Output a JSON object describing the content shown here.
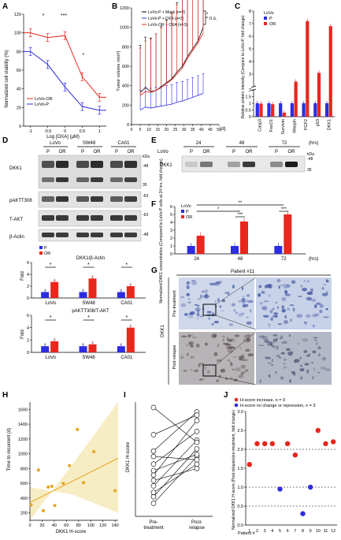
{
  "figure": {
    "panel_letters": [
      "A",
      "B",
      "C",
      "D",
      "E",
      "F",
      "G",
      "H",
      "I",
      "J"
    ],
    "colors": {
      "red": "#e8271d",
      "blue": "#2c2ce0",
      "band": "#1c1c1c",
      "ihc_bg": "#cdd7e8",
      "ihc_cell": "#3a4fa0",
      "yellow": "#e5a51f",
      "yellow_fill": "#f6edc4"
    }
  },
  "panelA": {
    "ylabel": "Normalized cell viability (%)",
    "xlabel": "Log [OXA] (μM)",
    "xticks": [
      "-1",
      "-0.5",
      "0",
      "0.5",
      "1"
    ],
    "yticks": [
      "0",
      "20",
      "40",
      "60",
      "80",
      "100",
      "120"
    ],
    "legend": [
      "LoVo-OR",
      "LoVo-P"
    ],
    "sig": [
      "*",
      "***",
      "*"
    ],
    "chart_data": {
      "type": "line",
      "series": [
        {
          "name": "LoVo-OR",
          "x": [
            -1,
            -0.5,
            0,
            0.5,
            1
          ],
          "y": [
            100,
            95,
            97,
            53,
            31
          ]
        },
        {
          "name": "LoVo-P",
          "x": [
            -1,
            -0.5,
            0,
            0.5,
            1
          ],
          "y": [
            80,
            66,
            42,
            21,
            17
          ]
        }
      ],
      "xlim": [
        -1.2,
        1.2
      ],
      "ylim": [
        0,
        120
      ]
    }
  },
  "panelB": {
    "ylabel": "Tumor volume (mm³)",
    "xlabel": "(d)",
    "xticks": [
      "0",
      "5",
      "10",
      "15",
      "20",
      "25",
      "30",
      "35",
      "40",
      "45",
      "50"
    ],
    "yticks": [
      "0",
      "200",
      "400",
      "600",
      "800",
      "1000",
      "1200"
    ],
    "legend": [
      "LoVo-P + Mock (n=3)",
      "LoVo-P + OXA (n=3)",
      "LoVo-OR + OXA (n=3)"
    ],
    "sig": [
      "*",
      "n.s."
    ],
    "chart_data": {
      "type": "line",
      "series": [
        {
          "name": "LoVo-P + Mock (n=3)",
          "x": [
            5,
            8,
            11,
            14,
            17,
            20,
            23,
            26,
            29,
            32,
            35,
            38,
            41
          ],
          "y": [
            330,
            380,
            340,
            350,
            390,
            430,
            470,
            540,
            600,
            700,
            780,
            860,
            1000
          ]
        },
        {
          "name": "LoVo-P + OXA (n=3)",
          "x": [
            5,
            8,
            11,
            14,
            17,
            20,
            23,
            26,
            29,
            32,
            35,
            38,
            41
          ],
          "y": [
            150,
            180,
            170,
            180,
            190,
            200,
            210,
            230,
            240,
            260,
            280,
            300,
            320
          ]
        },
        {
          "name": "LoVo-OR + OXA (n=3)",
          "x": [
            5,
            8,
            11,
            14,
            17,
            20,
            23,
            26,
            29,
            32,
            35,
            38,
            41
          ],
          "y": [
            300,
            340,
            330,
            350,
            380,
            420,
            460,
            520,
            580,
            680,
            760,
            840,
            940
          ]
        }
      ]
    }
  },
  "panelC": {
    "ylabel": "Relative protein intensity (Compare to LoVo-P, fold change)",
    "legend_title": "LoVo",
    "legend": [
      "P",
      "OR"
    ],
    "yticks": [
      "0",
      "0.5",
      "1",
      "1.5",
      "2",
      "3",
      "4",
      "5",
      "6",
      "7",
      "8"
    ],
    "chart_data": {
      "type": "bar",
      "categories": [
        "Casp3",
        "FoxO1",
        "Survivin",
        "Maspin",
        "FGF2",
        "p53",
        "DKK1"
      ],
      "series": [
        {
          "name": "P",
          "values": [
            1,
            1,
            1,
            1,
            1,
            1,
            1
          ]
        },
        {
          "name": "OR",
          "values": [
            0.97,
            0.93,
            0.3,
            2.4,
            7.2,
            3.1,
            6.8
          ]
        }
      ]
    }
  },
  "panelD": {
    "groups": [
      "LoVo",
      "SW48",
      "CA01"
    ],
    "lanes": [
      "P",
      "OR",
      "P",
      "OR",
      "P",
      "OR"
    ],
    "rows": [
      "DKK1",
      "pAKTT308",
      "T-AKT",
      "β-Actin"
    ],
    "kda": [
      "kDa",
      "-48",
      "35",
      "-63",
      "-63",
      "-48"
    ],
    "bar1": {
      "title": "DKK1/β-Actin",
      "ylabel": "Fold",
      "legend": [
        "P",
        "OR"
      ],
      "yticks": [
        "0",
        "2",
        "4",
        "6"
      ],
      "chart_data": {
        "type": "bar",
        "categories": [
          "LoVo",
          "SW48",
          "CA01"
        ],
        "series": [
          {
            "name": "P",
            "values": [
              1,
              1,
              1
            ]
          },
          {
            "name": "OR",
            "values": [
              2.7,
              3.3,
              2.0
            ]
          }
        ],
        "ylim": [
          0,
          6
        ]
      }
    },
    "bar2": {
      "title": "pAKTT308/T-AKT",
      "ylabel": "Fold",
      "yticks": [
        "0",
        "2",
        "4",
        "6"
      ],
      "chart_data": {
        "type": "bar",
        "categories": [
          "LoVo",
          "SW48",
          "CA01"
        ],
        "series": [
          {
            "name": "P",
            "values": [
              1,
              1,
              1
            ]
          },
          {
            "name": "OR",
            "values": [
              1.8,
              1.3,
              4.0
            ]
          }
        ],
        "ylim": [
          0,
          6
        ]
      }
    },
    "sig": "*"
  },
  "panelE": {
    "times": [
      "24",
      "48",
      "72"
    ],
    "unit": "(hrs)",
    "row_label": "LoVo",
    "lanes": [
      "P",
      "OR",
      "P",
      "OR",
      "P",
      "OR"
    ],
    "band": "DKK1",
    "kda": [
      "kDa",
      "-48",
      "35"
    ]
  },
  "panelF": {
    "ylabel": "Normalized DKK1 concentration (Compared to LoVo-P cells at 24 hrs, fold change)",
    "xticks": [
      "24",
      "48",
      "72"
    ],
    "xunit": "(hrs)",
    "yticks": [
      "0",
      "1",
      "2",
      "3",
      "4",
      "5",
      "6"
    ],
    "legend_title": "LoVo",
    "legend": [
      "P",
      "OR"
    ],
    "sig": [
      "**",
      "*",
      "***",
      "***"
    ],
    "chart_data": {
      "type": "bar",
      "categories": [
        "24",
        "48",
        "72"
      ],
      "series": [
        {
          "name": "P",
          "values": [
            1,
            1,
            1
          ]
        },
        {
          "name": "OR",
          "values": [
            2.3,
            4.1,
            5.0
          ]
        }
      ],
      "ylim": [
        0,
        6
      ]
    }
  },
  "panelG": {
    "title": "Patient #11",
    "side_label": "DKK1",
    "rows": [
      "Pre-treatment",
      "Post-relapse"
    ]
  },
  "panelH": {
    "ylabel": "Time to recurrent (d)",
    "xlabel": "DKK1 H-score",
    "xticks": [
      "0",
      "20",
      "40",
      "60",
      "80",
      "100",
      "120",
      "140"
    ],
    "yticks": [
      "200",
      "400",
      "600",
      "800",
      "1000",
      "1200",
      "1400",
      "1600"
    ],
    "chart_data": {
      "type": "scatter",
      "x": [
        2,
        14,
        22,
        30,
        36,
        41,
        55,
        65,
        78,
        88,
        105,
        140
      ],
      "y": [
        310,
        780,
        230,
        550,
        560,
        300,
        600,
        840,
        1330,
        610,
        1030,
        500
      ],
      "xlim": [
        0,
        145
      ],
      "ylim": [
        100,
        1700
      ]
    }
  },
  "panelI": {
    "ylabel": "DKK1 H-score",
    "xticks": [
      "Pre-\ntreatment",
      "Post-\nrelapse"
    ],
    "chart_data": {
      "type": "line",
      "categories": [
        "Pre-treatment",
        "Post-relapse"
      ],
      "series": [
        {
          "name": "1",
          "values": [
            12,
            55
          ]
        },
        {
          "name": "2",
          "values": [
            18,
            62
          ]
        },
        {
          "name": "3",
          "values": [
            22,
            48
          ]
        },
        {
          "name": "4",
          "values": [
            28,
            70
          ]
        },
        {
          "name": "5",
          "values": [
            33,
            44
          ]
        },
        {
          "name": "6",
          "values": [
            38,
            88
          ]
        },
        {
          "name": "7",
          "values": [
            42,
            57
          ]
        },
        {
          "name": "8",
          "values": [
            48,
            78
          ]
        },
        {
          "name": "9",
          "values": [
            55,
            52
          ]
        },
        {
          "name": "10",
          "values": [
            60,
            96
          ]
        },
        {
          "name": "11",
          "values": [
            75,
            93
          ]
        },
        {
          "name": "12",
          "values": [
            100,
            68
          ]
        }
      ]
    }
  },
  "panelJ": {
    "legend": [
      "H-score increase, n = 9",
      "H-score no change or repression, n = 3"
    ],
    "ylabel": "Normalized DKK1 H-score (Post-relapse/pre-treatment, fold change)",
    "yticks": [
      "0.0",
      "0.5",
      "1.0",
      "1.5",
      "2.0",
      "2.5",
      "3.0"
    ],
    "xlabel_prefix": "Patient #",
    "xticks": [
      "1",
      "2",
      "3",
      "4",
      "5",
      "6",
      "7",
      "8",
      "9",
      "10",
      "11",
      "12"
    ],
    "chart_data": {
      "type": "scatter",
      "x": [
        1,
        2,
        3,
        4,
        5,
        6,
        7,
        8,
        9,
        10,
        11,
        12
      ],
      "y": [
        1.6,
        2.15,
        2.15,
        2.15,
        0.95,
        2.15,
        1.85,
        0.3,
        1.0,
        2.5,
        2.15,
        2.2
      ],
      "group": [
        "inc",
        "inc",
        "inc",
        "inc",
        "dec",
        "inc",
        "inc",
        "dec",
        "dec",
        "inc",
        "inc",
        "inc"
      ],
      "ylim": [
        0,
        3.0
      ]
    }
  }
}
